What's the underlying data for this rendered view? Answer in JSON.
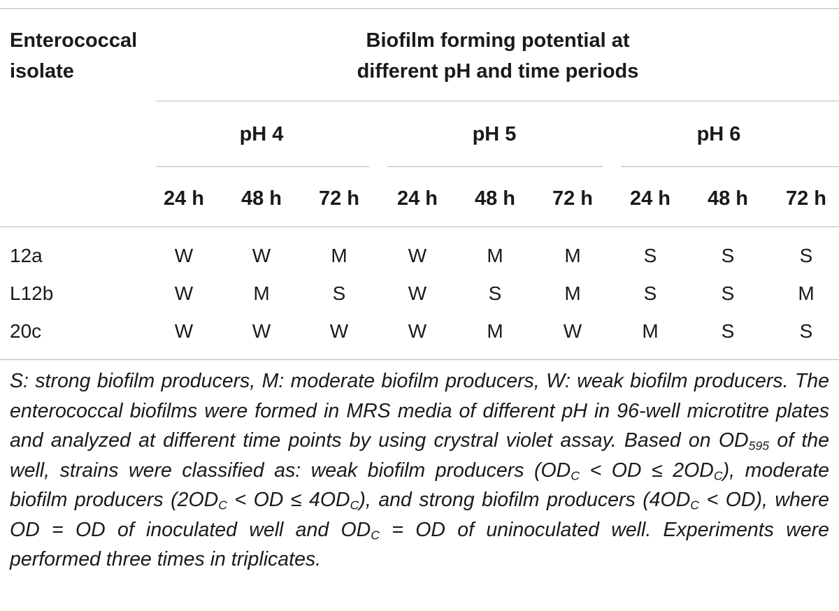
{
  "table": {
    "isolate_header_line1": "Enterococcal",
    "isolate_header_line2": "isolate",
    "group_header_line1": "Biofilm forming potential at",
    "group_header_line2": "different pH and time periods",
    "ph_levels": [
      "pH 4",
      "pH 5",
      "pH 6"
    ],
    "time_points": [
      "24 h",
      "48 h",
      "72 h"
    ],
    "rows": [
      {
        "isolate": "12a",
        "values": [
          "W",
          "W",
          "M",
          "W",
          "M",
          "M",
          "S",
          "S",
          "S"
        ]
      },
      {
        "isolate": "L12b",
        "values": [
          "W",
          "M",
          "S",
          "W",
          "S",
          "M",
          "S",
          "S",
          "M"
        ]
      },
      {
        "isolate": "20c",
        "values": [
          "W",
          "W",
          "W",
          "W",
          "M",
          "W",
          "M",
          "S",
          "S"
        ]
      }
    ]
  },
  "footnote": {
    "p1": "S: strong biofilm producers, M: moderate biofilm producers, W: weak biofilm producers. The enterococcal biofilms were formed in MRS media of different pH in 96-well microtitre plates and analyzed at different time points by using crystral violet assay. Based on OD",
    "sub_595": "595",
    "p2": " of the well, strains were classified as: weak biofilm producers (OD",
    "sub_c1": "C",
    "p3": " < OD ≤ 2OD",
    "sub_c2": "C",
    "p4": "), moderate biofilm producers (2OD",
    "sub_c3": "C",
    "p5": " < OD ≤ 4OD",
    "sub_c4": "C",
    "p6": "), and strong biofilm producers (4OD",
    "sub_c5": "C",
    "p7": " < OD), where OD = OD of inoculated well and OD",
    "sub_c6": "C",
    "p8": " = OD of uninoculated well. Experiments were performed three times in triplicates."
  }
}
